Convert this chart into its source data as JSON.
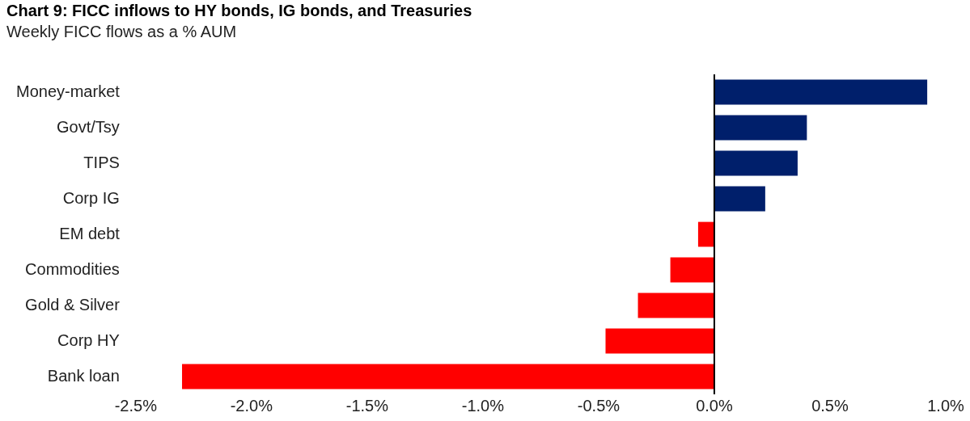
{
  "chart_data": {
    "type": "bar",
    "orientation": "horizontal",
    "title": "Chart 9: FICC inflows to HY bonds, IG bonds, and Treasuries",
    "subtitle": "Weekly FICC flows as a % AUM",
    "categories": [
      "Money-market",
      "Govt/Tsy",
      "TIPS",
      "Corp IG",
      "EM debt",
      "Commodities",
      "Gold & Silver",
      "Corp HY",
      "Bank loan"
    ],
    "values": [
      0.92,
      0.4,
      0.36,
      0.22,
      -0.07,
      -0.19,
      -0.33,
      -0.47,
      -2.3
    ],
    "colors": [
      "#001f6b",
      "#001f6b",
      "#001f6b",
      "#001f6b",
      "#ff0000",
      "#ff0000",
      "#ff0000",
      "#ff0000",
      "#ff0000"
    ],
    "xlim": [
      -2.5,
      1.0
    ],
    "xticks": [
      {
        "value": -2.5,
        "label": "-2.5%"
      },
      {
        "value": -2.0,
        "label": "-2.0%"
      },
      {
        "value": -1.5,
        "label": "-1.5%"
      },
      {
        "value": -1.0,
        "label": "-1.0%"
      },
      {
        "value": -0.5,
        "label": "-0.5%"
      },
      {
        "value": 0.0,
        "label": "0.0%"
      },
      {
        "value": 0.5,
        "label": "0.5%"
      },
      {
        "value": 1.0,
        "label": "1.0%"
      }
    ],
    "legend": false
  }
}
